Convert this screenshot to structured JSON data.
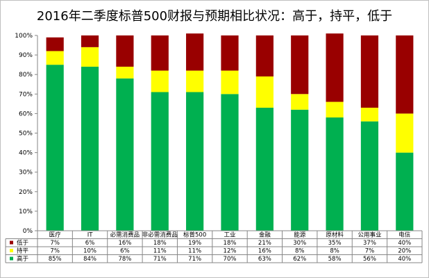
{
  "chart_data": {
    "type": "bar",
    "stacked": true,
    "title": "2016年二季度标普500财报与预期相比状况：高于，持平，低于",
    "categories": [
      "医疗",
      "IT",
      "必需消费品",
      "非必需消费品",
      "标普500",
      "工业",
      "金融",
      "能源",
      "原材料",
      "公用事业",
      "电信"
    ],
    "series": [
      {
        "name": "高于",
        "color": "#00b050",
        "values": [
          85,
          84,
          78,
          71,
          71,
          70,
          63,
          62,
          58,
          56,
          40
        ],
        "labels": [
          "85%",
          "84%",
          "78%",
          "71%",
          "71%",
          "70%",
          "63%",
          "62%",
          "58%",
          "56%",
          "40%"
        ]
      },
      {
        "name": "持平",
        "color": "#ffff00",
        "values": [
          7,
          10,
          6,
          11,
          11,
          12,
          16,
          8,
          8,
          7,
          20
        ],
        "labels": [
          "7%",
          "10%",
          "6%",
          "11%",
          "11%",
          "12%",
          "16%",
          "8%",
          "8%",
          "7%",
          "20%"
        ]
      },
      {
        "name": "低于",
        "color": "#990000",
        "values": [
          7,
          6,
          16,
          18,
          19,
          18,
          21,
          30,
          35,
          37,
          40
        ],
        "labels": [
          "7%",
          "6%",
          "16%",
          "18%",
          "19%",
          "18%",
          "21%",
          "30%",
          "35%",
          "37%",
          "40%"
        ]
      }
    ],
    "table_row_order": [
      "低于",
      "持平",
      "高于"
    ],
    "ylim": [
      0,
      100
    ],
    "yticks": [
      "0%",
      "10%",
      "20%",
      "30%",
      "40%",
      "50%",
      "60%",
      "70%",
      "80%",
      "90%",
      "100%"
    ],
    "grid": false,
    "legend": "data-table-below"
  }
}
